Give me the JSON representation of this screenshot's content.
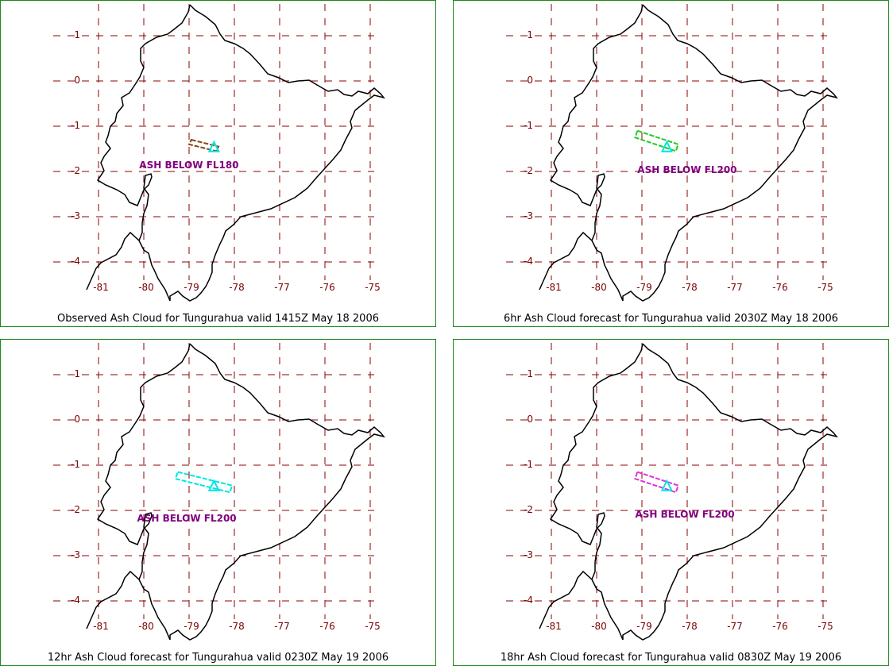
{
  "axes": {
    "lon_ticks": [
      "-81",
      "-80",
      "-79",
      "-78",
      "-77",
      "-76",
      "-75"
    ],
    "lat_ticks": [
      "1",
      "0",
      "-1",
      "-2",
      "-3",
      "-4"
    ]
  },
  "panels": [
    {
      "caption": "Observed Ash Cloud for Tungurahua valid 1415Z May 18 2006",
      "ash_label": "ASH BELOW FL180",
      "ash_label_lonlat": [
        -80.1,
        -1.88
      ],
      "cloud_color": "#8B4513",
      "cloud_polygon": [
        [
          -78.95,
          -1.3
        ],
        [
          -78.35,
          -1.45
        ],
        [
          -78.4,
          -1.55
        ],
        [
          -79.0,
          -1.4
        ]
      ]
    },
    {
      "caption": "6hr Ash Cloud forecast for Tungurahua valid 2030Z May 18 2006",
      "ash_label": "ASH BELOW FL200",
      "ash_label_lonlat": [
        -79.1,
        -1.98
      ],
      "cloud_color": "#22cc22",
      "cloud_polygon": [
        [
          -79.1,
          -1.1
        ],
        [
          -78.2,
          -1.4
        ],
        [
          -78.25,
          -1.55
        ],
        [
          -79.15,
          -1.25
        ]
      ]
    },
    {
      "caption": "12hr Ash Cloud forecast for Tungurahua valid 0230Z May 19 2006",
      "ash_label": "ASH BELOW FL200",
      "ash_label_lonlat": [
        -80.15,
        -2.2
      ],
      "cloud_color": "#00e5e5",
      "cloud_polygon": [
        [
          -79.25,
          -1.15
        ],
        [
          -78.05,
          -1.45
        ],
        [
          -78.1,
          -1.6
        ],
        [
          -79.3,
          -1.3
        ]
      ]
    },
    {
      "caption": "18hr Ash Cloud forecast for Tungurahua valid 0830Z May 19 2006",
      "ash_label": "ASH BELOW FL200",
      "ash_label_lonlat": [
        -79.15,
        -2.1
      ],
      "cloud_color": "#dd33dd",
      "cloud_polygon": [
        [
          -79.1,
          -1.15
        ],
        [
          -78.2,
          -1.45
        ],
        [
          -78.25,
          -1.6
        ],
        [
          -79.15,
          -1.3
        ]
      ]
    }
  ],
  "volcano": {
    "name_marker": "triangle",
    "lonlat": [
      -78.45,
      -1.47
    ],
    "color": "#00e5e5"
  },
  "colors": {
    "frame": "#1a8a1a",
    "grid": "#8b0000",
    "tick_text": "#7a0000",
    "coast": "#000000",
    "ash_label": "#800080"
  }
}
